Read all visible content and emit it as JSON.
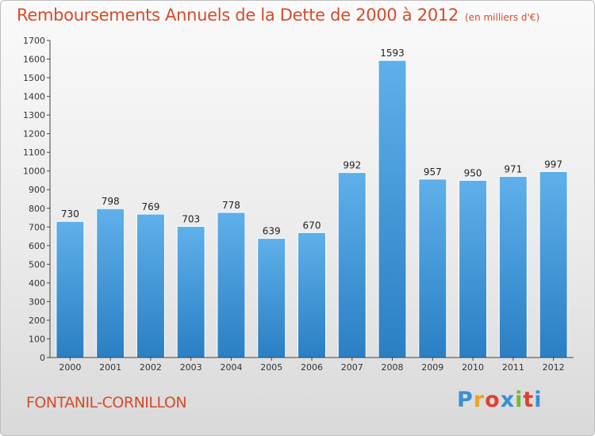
{
  "title": "Remboursements Annuels de la Dette de 2000 à 2012",
  "unit": "(en milliers d'€)",
  "commune": "FONTANIL-CORNILLON",
  "logo": {
    "letters": [
      "P",
      "r",
      "o",
      "x",
      "i",
      "t",
      "i"
    ],
    "colors": [
      "#3a8fd6",
      "#f0a21d",
      "#e2402f",
      "#3a8fd6",
      "#72b83b",
      "#e2402f",
      "#3a8fd6"
    ]
  },
  "chart_data": {
    "type": "bar",
    "categories": [
      "2000",
      "2001",
      "2002",
      "2003",
      "2004",
      "2005",
      "2006",
      "2007",
      "2008",
      "2009",
      "2010",
      "2011",
      "2012"
    ],
    "values": [
      730,
      798,
      769,
      703,
      778,
      639,
      670,
      992,
      1593,
      957,
      950,
      971,
      997
    ],
    "value_labels": [
      "730",
      "798",
      "769",
      "703",
      "778",
      "639",
      "670",
      "992",
      "1593",
      "957",
      "950",
      "971",
      "997"
    ],
    "yticks": [
      "0",
      "100",
      "200",
      "300",
      "400",
      "500",
      "600",
      "700",
      "800",
      "900",
      "1000",
      "1100",
      "1200",
      "1300",
      "1400",
      "1500",
      "1600",
      "1700"
    ],
    "ylim": [
      0,
      1700
    ],
    "grid": false,
    "colors": {
      "bar_top": "#5fb0ea",
      "bar_bottom": "#2a7fc4",
      "axis": "#444444"
    }
  }
}
